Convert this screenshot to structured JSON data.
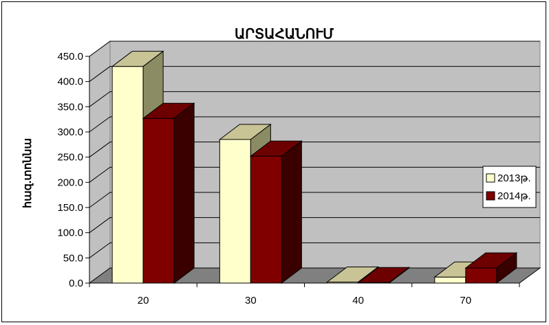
{
  "chart_data": {
    "type": "bar",
    "title": "ԱՐՏԱՀԱՆՈՒՄ",
    "xlabel": "",
    "ylabel": "հազ.տոննա",
    "categories": [
      "20",
      "30",
      "40",
      "70"
    ],
    "series": [
      {
        "name": "2013թ.",
        "values": [
          430,
          285,
          2,
          12
        ],
        "color": "#FFFFCC"
      },
      {
        "name": "2014թ.",
        "values": [
          327,
          252,
          1,
          30
        ],
        "color": "#800000"
      }
    ],
    "ylim": [
      0,
      450
    ],
    "yticks": [
      "0.0",
      "50.0",
      "100.0",
      "150.0",
      "200.0",
      "250.0",
      "300.0",
      "350.0",
      "400.0",
      "450.0"
    ],
    "grid": true,
    "legend": "right",
    "wall_color": "#C0C0C0",
    "floor_color": "#808080"
  }
}
